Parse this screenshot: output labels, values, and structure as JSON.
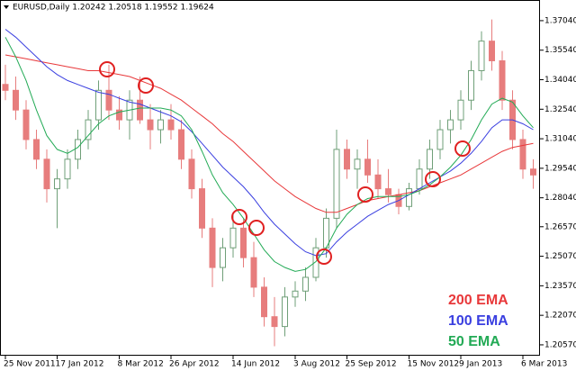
{
  "chart_data": {
    "type": "candlestick",
    "title": "EURUSD,Daily  1.20242 1.20518 1.19552 1.19624",
    "categories": [
      "25 Nov 2011",
      null,
      null,
      null,
      null,
      "17 Jan 2012",
      null,
      null,
      null,
      null,
      null,
      "8 Mar 2012",
      null,
      null,
      null,
      null,
      "26 Apr 2012",
      null,
      null,
      null,
      null,
      null,
      "14 Jun 2012",
      null,
      null,
      null,
      null,
      null,
      "3 Aug 2012",
      null,
      null,
      null,
      null,
      "25 Sep 2012",
      null,
      null,
      null,
      null,
      null,
      "15 Nov 2012",
      null,
      null,
      null,
      null,
      "9 Jan 2013",
      null,
      null,
      null,
      null,
      null,
      "6 Mar 2013",
      null
    ],
    "open": [
      1.338,
      1.335,
      1.325,
      1.31,
      1.3,
      1.285,
      1.29,
      1.3,
      1.31,
      1.32,
      1.335,
      1.325,
      1.32,
      1.33,
      1.32,
      1.315,
      1.32,
      1.315,
      1.3,
      1.285,
      1.265,
      1.245,
      1.255,
      1.265,
      1.25,
      1.235,
      1.22,
      1.215,
      1.23,
      1.233,
      1.24,
      1.255,
      1.27,
      1.305,
      1.295,
      1.3,
      1.292,
      1.285,
      1.282,
      1.276,
      1.285,
      1.295,
      1.305,
      1.315,
      1.32,
      1.33,
      1.345,
      1.36,
      1.35,
      1.33,
      1.31,
      1.295
    ],
    "high": [
      1.348,
      1.342,
      1.33,
      1.315,
      1.305,
      1.295,
      1.305,
      1.315,
      1.325,
      1.34,
      1.348,
      1.332,
      1.335,
      1.342,
      1.328,
      1.325,
      1.328,
      1.32,
      1.305,
      1.29,
      1.27,
      1.26,
      1.272,
      1.27,
      1.258,
      1.24,
      1.23,
      1.235,
      1.238,
      1.245,
      1.26,
      1.275,
      1.315,
      1.31,
      1.305,
      1.31,
      1.3,
      1.295,
      1.285,
      1.288,
      1.3,
      1.31,
      1.32,
      1.325,
      1.335,
      1.35,
      1.365,
      1.371,
      1.355,
      1.335,
      1.315,
      1.3
    ],
    "low": [
      1.33,
      1.32,
      1.305,
      1.295,
      1.278,
      1.265,
      1.285,
      1.295,
      1.305,
      1.315,
      1.32,
      1.315,
      1.31,
      1.318,
      1.305,
      1.308,
      1.31,
      1.295,
      1.28,
      1.26,
      1.235,
      1.238,
      1.25,
      1.245,
      1.23,
      1.215,
      1.205,
      1.21,
      1.225,
      1.228,
      1.238,
      1.25,
      1.265,
      1.29,
      1.285,
      1.288,
      1.28,
      1.278,
      1.272,
      1.274,
      1.282,
      1.29,
      1.3,
      1.308,
      1.315,
      1.325,
      1.34,
      1.345,
      1.325,
      1.305,
      1.29,
      1.285
    ],
    "close": [
      1.335,
      1.325,
      1.31,
      1.3,
      1.285,
      1.29,
      1.3,
      1.31,
      1.32,
      1.335,
      1.325,
      1.32,
      1.33,
      1.32,
      1.315,
      1.32,
      1.315,
      1.3,
      1.285,
      1.265,
      1.245,
      1.255,
      1.265,
      1.25,
      1.235,
      1.22,
      1.215,
      1.23,
      1.233,
      1.24,
      1.255,
      1.27,
      1.305,
      1.295,
      1.3,
      1.292,
      1.285,
      1.282,
      1.276,
      1.285,
      1.295,
      1.305,
      1.315,
      1.32,
      1.33,
      1.345,
      1.36,
      1.35,
      1.33,
      1.31,
      1.295,
      1.292
    ],
    "up_color": "#6f9f78",
    "down_color": "#e77d7d",
    "series": [
      {
        "name": "200 EMA",
        "color": "#e8383a",
        "values": [
          1.353,
          1.352,
          1.351,
          1.35,
          1.349,
          1.348,
          1.347,
          1.346,
          1.345,
          1.345,
          1.344,
          1.343,
          1.342,
          1.34,
          1.338,
          1.336,
          1.333,
          1.33,
          1.326,
          1.322,
          1.318,
          1.313,
          1.309,
          1.304,
          1.299,
          1.294,
          1.289,
          1.285,
          1.281,
          1.278,
          1.275,
          1.273,
          1.273,
          1.275,
          1.277,
          1.279,
          1.28,
          1.281,
          1.282,
          1.283,
          1.284,
          1.286,
          1.288,
          1.29,
          1.292,
          1.295,
          1.298,
          1.301,
          1.304,
          1.306,
          1.307,
          1.308
        ]
      },
      {
        "name": "100 EMA",
        "color": "#3a3fe0",
        "values": [
          1.366,
          1.362,
          1.357,
          1.352,
          1.347,
          1.343,
          1.34,
          1.338,
          1.336,
          1.334,
          1.333,
          1.331,
          1.329,
          1.328,
          1.326,
          1.324,
          1.322,
          1.319,
          1.314,
          1.308,
          1.302,
          1.296,
          1.291,
          1.286,
          1.28,
          1.273,
          1.267,
          1.262,
          1.257,
          1.253,
          1.251,
          1.252,
          1.258,
          1.263,
          1.267,
          1.271,
          1.274,
          1.277,
          1.279,
          1.282,
          1.285,
          1.288,
          1.291,
          1.294,
          1.298,
          1.303,
          1.309,
          1.316,
          1.32,
          1.32,
          1.318,
          1.315
        ]
      },
      {
        "name": "50 EMA",
        "color": "#22aa55",
        "values": [
          1.362,
          1.352,
          1.34,
          1.325,
          1.312,
          1.305,
          1.303,
          1.306,
          1.312,
          1.318,
          1.322,
          1.324,
          1.325,
          1.326,
          1.326,
          1.326,
          1.325,
          1.322,
          1.315,
          1.304,
          1.292,
          1.283,
          1.277,
          1.27,
          1.262,
          1.254,
          1.248,
          1.245,
          1.243,
          1.244,
          1.248,
          1.255,
          1.265,
          1.272,
          1.277,
          1.28,
          1.281,
          1.281,
          1.281,
          1.282,
          1.284,
          1.287,
          1.291,
          1.296,
          1.302,
          1.31,
          1.32,
          1.328,
          1.331,
          1.329,
          1.322,
          1.316
        ]
      }
    ],
    "ylim": [
      1.2011,
      1.3754
    ],
    "yticks": [
      {
        "value": 1.3704,
        "label": "1.37040"
      },
      {
        "value": 1.3554,
        "label": "1.35540"
      },
      {
        "value": 1.3404,
        "label": "1.34040"
      },
      {
        "value": 1.3254,
        "label": "1.32540"
      },
      {
        "value": 1.3104,
        "label": "1.31040"
      },
      {
        "value": 1.2954,
        "label": "1.29540"
      },
      {
        "value": 1.2804,
        "label": "1.28040"
      },
      {
        "value": 1.2657,
        "label": "1.26570"
      },
      {
        "value": 1.2507,
        "label": "1.25070"
      },
      {
        "value": 1.2357,
        "label": "1.23570"
      },
      {
        "value": 1.2207,
        "label": "1.22070"
      },
      {
        "value": 1.2057,
        "label": "1.20570"
      }
    ],
    "grid": false
  }
}
